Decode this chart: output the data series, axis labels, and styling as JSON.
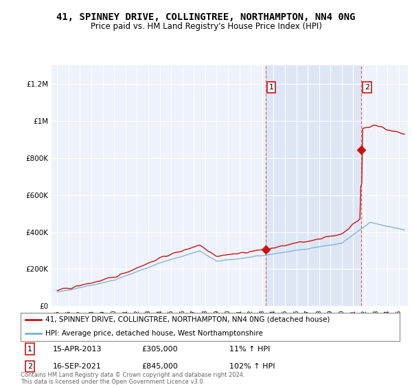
{
  "title": "41, SPINNEY DRIVE, COLLINGTREE, NORTHAMPTON, NN4 0NG",
  "subtitle": "Price paid vs. HM Land Registry's House Price Index (HPI)",
  "title_fontsize": 10,
  "subtitle_fontsize": 8.5,
  "bg_color": "#ffffff",
  "plot_bg_color": "#eef2fa",
  "plot_bg_color2": "#dce6f5",
  "grid_color": "#ffffff",
  "line_color_hpi": "#7bafd4",
  "line_color_house": "#cc1111",
  "ylim": [
    0,
    1300000
  ],
  "yticks": [
    0,
    200000,
    400000,
    600000,
    800000,
    1000000,
    1200000
  ],
  "ytick_labels": [
    "£0",
    "£200K",
    "£400K",
    "£600K",
    "£800K",
    "£1M",
    "£1.2M"
  ],
  "sale1_year": 2013.29,
  "sale1_price": 305000,
  "sale2_year": 2021.71,
  "sale2_price": 845000,
  "annotation1_date": "15-APR-2013",
  "annotation1_price": "£305,000",
  "annotation1_pct": "11% ↑ HPI",
  "annotation2_date": "16-SEP-2021",
  "annotation2_price": "£845,000",
  "annotation2_pct": "102% ↑ HPI",
  "legend_label_house": "41, SPINNEY DRIVE, COLLINGTREE, NORTHAMPTON, NN4 0NG (detached house)",
  "legend_label_hpi": "HPI: Average price, detached house, West Northamptonshire",
  "footer": "Contains HM Land Registry data © Crown copyright and database right 2024.\nThis data is licensed under the Open Government Licence v3.0.",
  "vline_color": "#dd5555",
  "num_box_color": "#cc1111"
}
